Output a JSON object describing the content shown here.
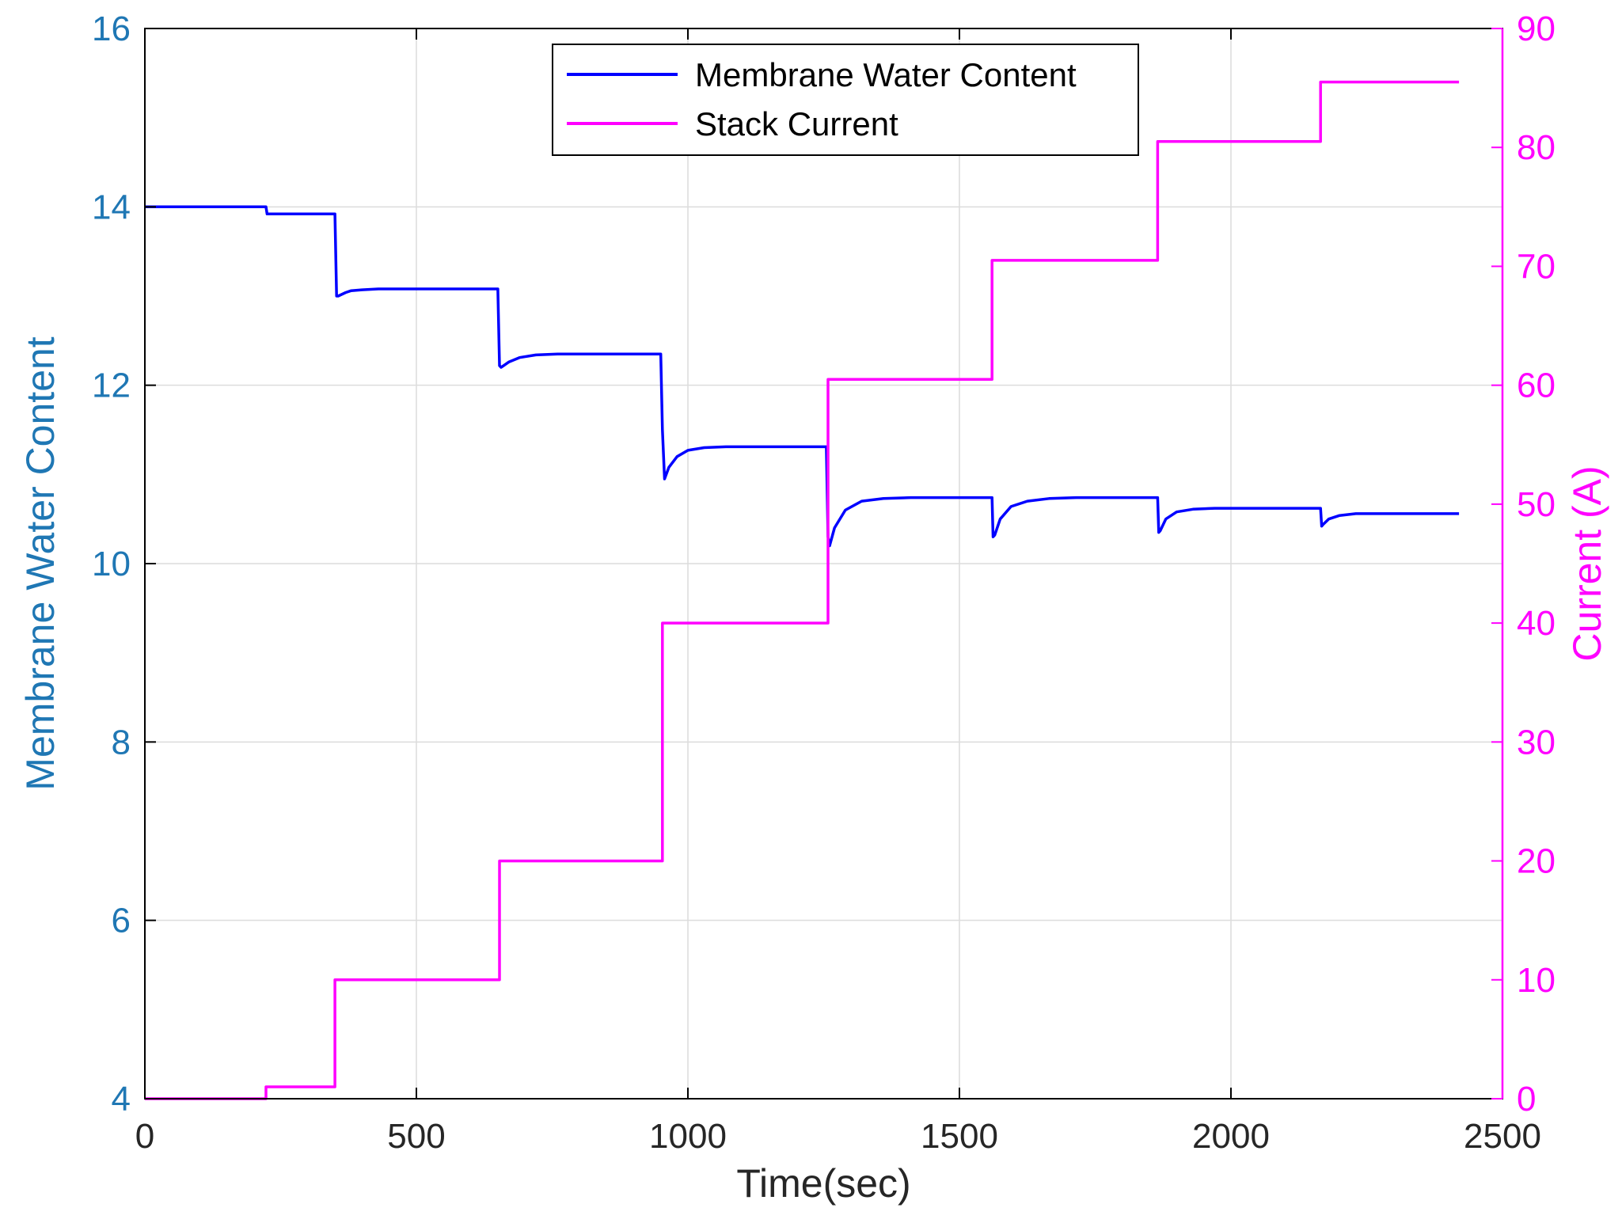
{
  "chart_data": {
    "type": "line",
    "xlabel": "Time(sec)",
    "xlim": [
      0,
      2500
    ],
    "xticks": [
      0,
      500,
      1000,
      1500,
      2000,
      2500
    ],
    "grid": true,
    "legend_placement": "top-center",
    "left_axis": {
      "ylabel": "Membrane Water Content",
      "ylim": [
        4,
        16
      ],
      "yticks": [
        4,
        6,
        8,
        10,
        12,
        14,
        16
      ],
      "color": "#1f77b4"
    },
    "right_axis": {
      "ylabel": "Current (A)",
      "ylim": [
        0,
        90
      ],
      "yticks": [
        0,
        10,
        20,
        30,
        40,
        50,
        60,
        70,
        80,
        90
      ],
      "color": "#ff00ff"
    },
    "series": [
      {
        "name": "Membrane Water Content",
        "axis": "left",
        "color": "#0000ff",
        "x": [
          0,
          223,
          225,
          230,
          350,
          353,
          356,
          370,
          380,
          400,
          430,
          470,
          520,
          650,
          653,
          656,
          670,
          690,
          720,
          760,
          810,
          950,
          953,
          957,
          965,
          980,
          1000,
          1030,
          1070,
          1120,
          1255,
          1258,
          1261,
          1270,
          1290,
          1320,
          1360,
          1410,
          1560,
          1562,
          1565,
          1575,
          1595,
          1625,
          1665,
          1715,
          1865,
          1867,
          1870,
          1880,
          1900,
          1930,
          1970,
          2020,
          2165,
          2167,
          2170,
          2180,
          2200,
          2230,
          2270,
          2320,
          2420
        ],
        "y": [
          14.0,
          14.0,
          13.92,
          13.92,
          13.92,
          13.0,
          13.0,
          13.04,
          13.06,
          13.07,
          13.08,
          13.08,
          13.08,
          13.08,
          12.22,
          12.2,
          12.26,
          12.31,
          12.34,
          12.35,
          12.35,
          12.35,
          11.5,
          10.95,
          11.08,
          11.2,
          11.27,
          11.3,
          11.31,
          11.31,
          11.31,
          10.3,
          10.2,
          10.4,
          10.6,
          10.7,
          10.73,
          10.74,
          10.74,
          10.3,
          10.32,
          10.5,
          10.64,
          10.7,
          10.73,
          10.74,
          10.74,
          10.35,
          10.37,
          10.5,
          10.58,
          10.61,
          10.62,
          10.62,
          10.62,
          10.42,
          10.44,
          10.5,
          10.54,
          10.56,
          10.56,
          10.56,
          10.56
        ]
      },
      {
        "name": "Stack Current",
        "axis": "right",
        "color": "#ff00ff",
        "x": [
          0,
          223,
          223,
          350,
          350,
          653,
          653,
          953,
          953,
          1258,
          1258,
          1560,
          1560,
          1865,
          1865,
          2165,
          2165,
          2420
        ],
        "y": [
          0,
          0,
          1,
          1,
          10,
          10,
          20,
          20,
          40,
          40,
          60.5,
          60.5,
          70.5,
          70.5,
          80.5,
          80.5,
          85.5,
          85.5
        ]
      }
    ]
  }
}
